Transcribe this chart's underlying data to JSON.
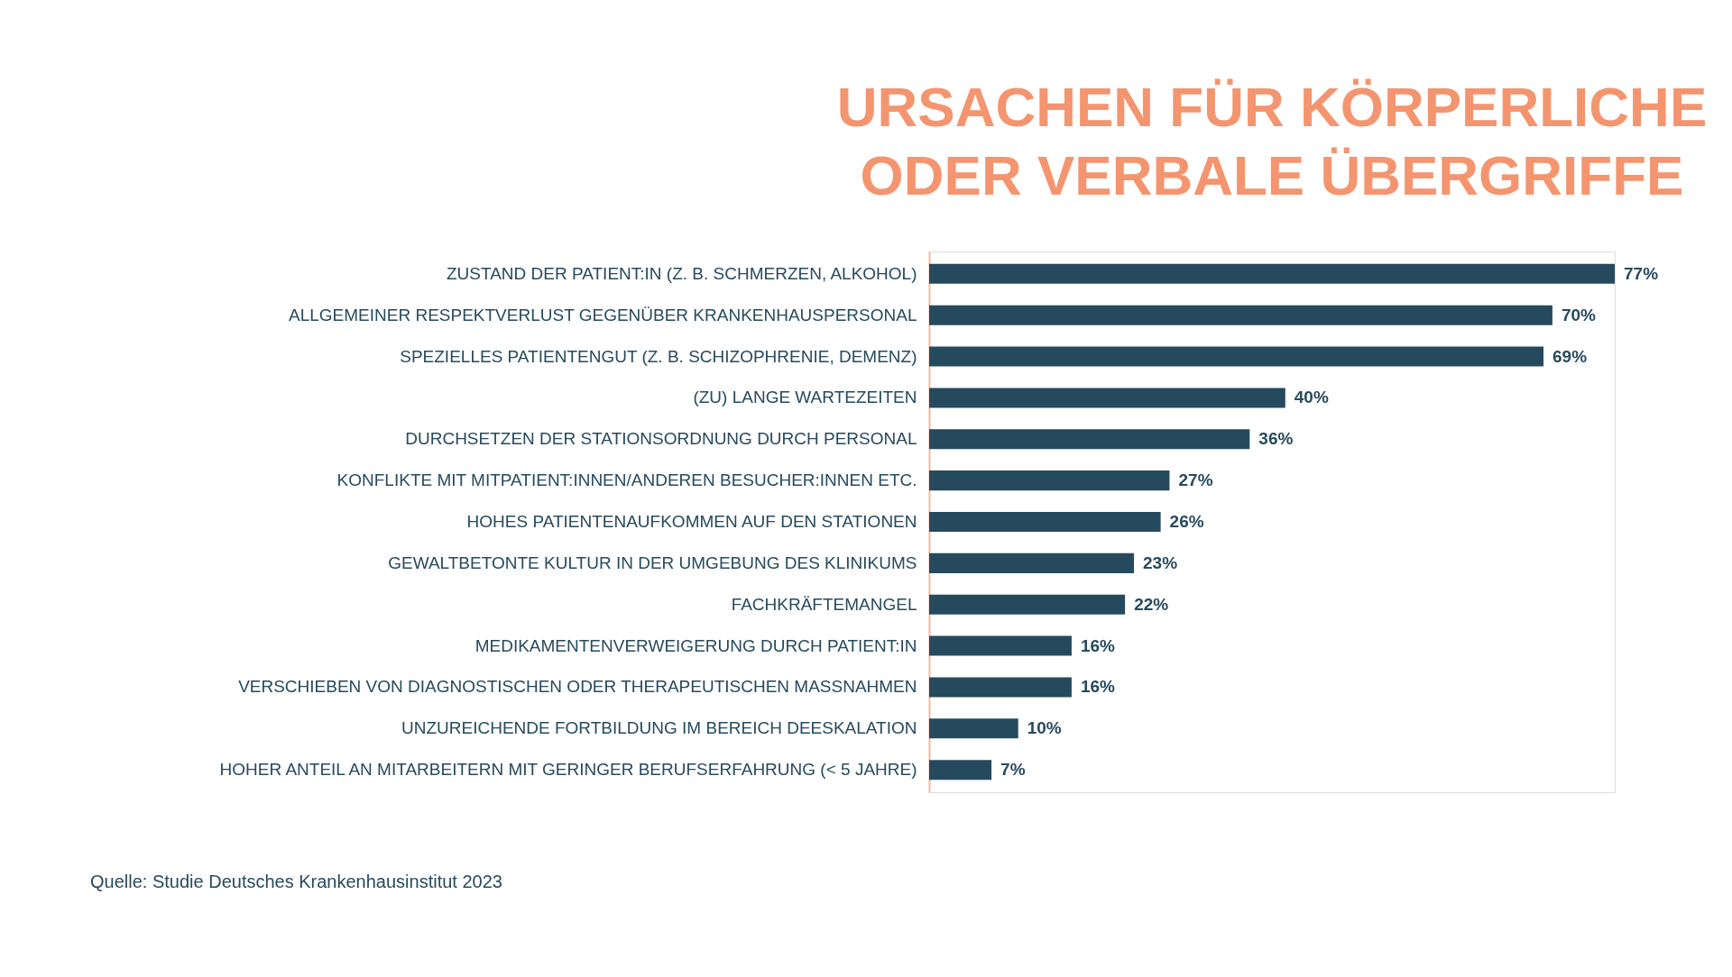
{
  "chart_data": {
    "type": "bar",
    "orientation": "horizontal",
    "title": "URSACHEN FÜR KÖRPERLICHE\nODER VERBALE ÜBERGRIFFE",
    "categories": [
      "ZUSTAND DER PATIENT:IN (Z. B. SCHMERZEN, ALKOHOL)",
      "ALLGEMEINER RESPEKTVERLUST GEGENÜBER KRANKENHAUSPERSONAL",
      "SPEZIELLES PATIENTENGUT (Z. B. SCHIZOPHRENIE, DEMENZ)",
      "(ZU) LANGE WARTEZEITEN",
      "DURCHSETZEN DER STATIONSORDNUNG DURCH PERSONAL",
      "KONFLIKTE MIT MITPATIENT:INNEN/ANDEREN BESUCHER:INNEN ETC.",
      "HOHES PATIENTENAUFKOMMEN AUF DEN STATIONEN",
      "GEWALTBETONTE KULTUR IN DER UMGEBUNG DES KLINIKUMS",
      "FACHKRÄFTEMANGEL",
      "MEDIKAMENTENVERWEIGERUNG DURCH PATIENT:IN",
      "VERSCHIEBEN VON DIAGNOSTISCHEN ODER THERAPEUTISCHEN MASSNAHMEN",
      "UNZUREICHENDE FORTBILDUNG IM BEREICH DEESKALATION",
      "HOHER ANTEIL AN MITARBEITERN MIT GERINGER BERUFSERFAHRUNG (< 5 JAHRE)"
    ],
    "values": [
      77,
      70,
      69,
      40,
      36,
      27,
      26,
      23,
      22,
      16,
      16,
      10,
      7
    ],
    "value_labels": [
      "77%",
      "70%",
      "69%",
      "40%",
      "36%",
      "27%",
      "26%",
      "23%",
      "22%",
      "16%",
      "16%",
      "10%",
      "7%"
    ],
    "color": "#264a5d",
    "annotations": [
      "Quelle: Studie Deutsches Krankenhausinstitut 2023"
    ]
  }
}
